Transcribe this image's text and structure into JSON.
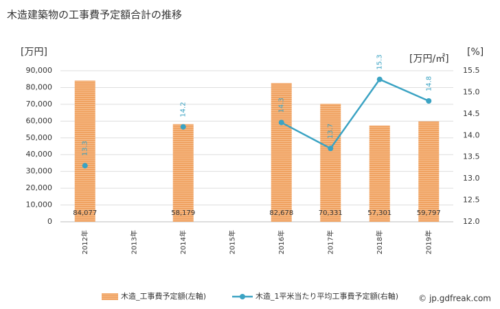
{
  "chart_data": {
    "type": "combo",
    "title": "木造建築物の工事費予定額合計の推移",
    "y_label": "[万円]",
    "y2_label": "[万円/㎡]",
    "y2_label_unit": "[%]",
    "categories": [
      "2012年",
      "2013年",
      "2014年",
      "2015年",
      "2016年",
      "2017年",
      "2018年",
      "2019年"
    ],
    "series": [
      {
        "name": "木造_工事費予定額(左軸)",
        "type": "bar",
        "color": "#f0a565",
        "values": [
          84077,
          null,
          58179,
          null,
          82678,
          70331,
          57301,
          59797
        ],
        "value_labels": [
          "84,077",
          null,
          "58,179",
          null,
          "82,678",
          "70,331",
          "57,301",
          "59,797"
        ]
      },
      {
        "name": "木造_1平米当たり平均工事費予定額(右軸)",
        "type": "line",
        "axis": "y2",
        "color": "#3ba3c3",
        "values": [
          13.3,
          null,
          14.2,
          null,
          14.3,
          13.7,
          15.3,
          14.8
        ]
      }
    ],
    "ylim": [
      0,
      90000
    ],
    "yticks": [
      0,
      {
        "value": 10000,
        "label": "10,000"
      },
      {
        "value": 20000,
        "label": "20,000"
      },
      {
        "value": 30000,
        "label": "30,000"
      },
      {
        "value": 40000,
        "label": "40,000"
      },
      {
        "value": 50000,
        "label": "50,000"
      },
      {
        "value": 60000,
        "label": "60,000"
      },
      {
        "value": 70000,
        "label": "70,000"
      },
      {
        "value": 80000,
        "label": "80,000"
      },
      {
        "value": 90000,
        "label": "90,000"
      }
    ],
    "y2lim": [
      12.0,
      15.5
    ],
    "y2ticks": [
      {
        "value": 12.0,
        "label": "12.0"
      },
      12.5,
      {
        "value": 13.0,
        "label": "13.0"
      },
      13.5,
      {
        "value": 14.0,
        "label": "14.0"
      },
      14.5,
      {
        "value": 15.0,
        "label": "15.0"
      },
      15.5
    ],
    "grid": true,
    "source": "© jp.gdfreak.com"
  }
}
